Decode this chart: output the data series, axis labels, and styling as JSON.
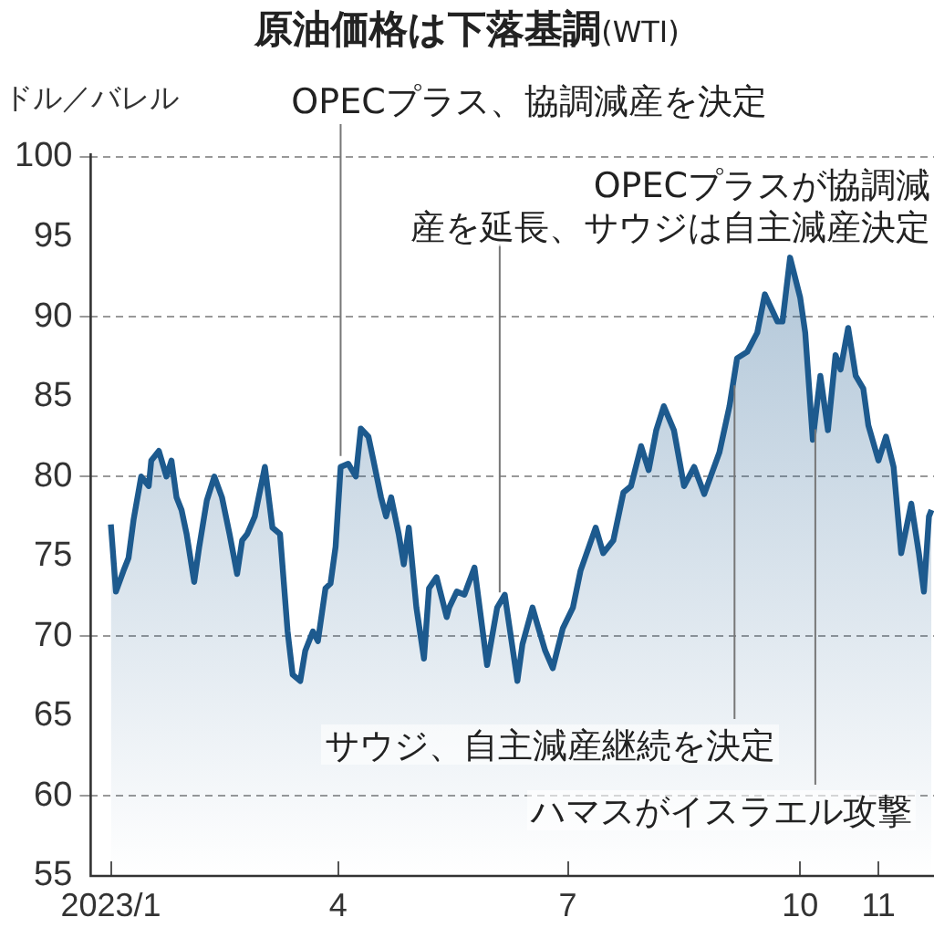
{
  "chart_data": {
    "type": "area",
    "title": "原油価格は下落基調",
    "subtitle": "(WTI)",
    "ylabel": "ドル／バレル",
    "x": [
      "2023-01-01",
      "2023-01-03",
      "2023-01-06",
      "2023-01-08",
      "2023-01-10",
      "2023-01-13",
      "2023-01-16",
      "2023-01-17",
      "2023-01-20",
      "2023-01-23",
      "2023-01-25",
      "2023-01-27",
      "2023-01-29",
      "2023-01-31",
      "2023-02-03",
      "2023-02-05",
      "2023-02-08",
      "2023-02-11",
      "2023-02-14",
      "2023-02-17",
      "2023-02-20",
      "2023-02-22",
      "2023-02-24",
      "2023-02-27",
      "2023-03-03",
      "2023-03-06",
      "2023-03-09",
      "2023-03-12",
      "2023-03-14",
      "2023-03-17",
      "2023-03-19",
      "2023-03-22",
      "2023-03-24",
      "2023-03-27",
      "2023-03-29",
      "2023-03-31",
      "2023-04-02",
      "2023-04-05",
      "2023-04-08",
      "2023-04-10",
      "2023-04-13",
      "2023-04-15",
      "2023-04-18",
      "2023-04-20",
      "2023-04-22",
      "2023-04-25",
      "2023-04-27",
      "2023-04-29",
      "2023-05-02",
      "2023-05-05",
      "2023-05-07",
      "2023-05-10",
      "2023-05-14",
      "2023-05-15",
      "2023-05-18",
      "2023-05-21",
      "2023-05-25",
      "2023-05-30",
      "2023-06-03",
      "2023-06-06",
      "2023-06-11",
      "2023-06-13",
      "2023-06-17",
      "2023-06-19",
      "2023-06-22",
      "2023-06-25",
      "2023-06-29",
      "2023-07-03",
      "2023-07-06",
      "2023-07-12",
      "2023-07-15",
      "2023-07-19",
      "2023-07-23",
      "2023-07-26",
      "2023-07-30",
      "2023-08-02",
      "2023-08-05",
      "2023-08-08",
      "2023-08-12",
      "2023-08-16",
      "2023-08-20",
      "2023-08-24",
      "2023-08-30",
      "2023-09-03",
      "2023-09-06",
      "2023-09-10",
      "2023-09-14",
      "2023-09-17",
      "2023-09-22",
      "2023-09-24",
      "2023-09-27",
      "2023-10-01",
      "2023-10-03",
      "2023-10-06",
      "2023-10-09",
      "2023-10-12",
      "2023-10-15",
      "2023-10-17",
      "2023-10-20",
      "2023-10-23",
      "2023-10-26",
      "2023-10-28",
      "2023-11-01",
      "2023-11-04",
      "2023-11-07",
      "2023-11-10",
      "2023-11-14",
      "2023-11-17",
      "2023-11-19",
      "2023-11-21",
      "2023-11-22"
    ],
    "series": [
      {
        "color": "#1d5a8e",
        "values": [
          77.0,
          72.8,
          74.1,
          74.9,
          77.3,
          80.0,
          79.4,
          81.0,
          81.6,
          80.0,
          81.0,
          78.7,
          77.9,
          76.4,
          73.4,
          75.6,
          78.5,
          80.0,
          78.7,
          76.4,
          73.9,
          76.0,
          76.4,
          77.5,
          80.6,
          76.8,
          76.4,
          70.3,
          67.6,
          67.2,
          69.1,
          70.3,
          69.7,
          73.0,
          73.3,
          75.6,
          80.6,
          80.8,
          80.0,
          83.0,
          82.5,
          81.0,
          78.7,
          77.5,
          78.7,
          76.4,
          74.5,
          76.8,
          71.8,
          68.6,
          73.0,
          73.7,
          71.2,
          71.8,
          72.8,
          72.6,
          74.3,
          68.2,
          71.8,
          72.6,
          67.2,
          69.5,
          71.8,
          70.7,
          69.1,
          68.0,
          70.5,
          71.8,
          74.1,
          76.8,
          75.2,
          76.0,
          79.0,
          79.4,
          81.9,
          80.4,
          82.9,
          84.4,
          82.9,
          79.4,
          80.6,
          78.9,
          81.5,
          84.4,
          87.4,
          87.8,
          89.0,
          91.4,
          89.7,
          89.7,
          93.7,
          91.2,
          89.0,
          82.3,
          86.3,
          82.9,
          87.6,
          86.7,
          89.3,
          86.3,
          85.5,
          83.2,
          81.0,
          82.5,
          80.6,
          75.2,
          78.3,
          75.2,
          72.8,
          77.5,
          77.9
        ]
      }
    ],
    "xlim": [
      "2022-12-24",
      "2023-11-23"
    ],
    "xticks": [
      {
        "value": "2023-01-01",
        "label": "2023/1"
      },
      {
        "value": "2023-04-01",
        "label": "4"
      },
      {
        "value": "2023-07-01",
        "label": "7"
      },
      {
        "value": "2023-10-01",
        "label": "10"
      },
      {
        "value": "2023-11-01",
        "label": "11"
      }
    ],
    "ylim": [
      55,
      100
    ],
    "yticks": [
      55,
      60,
      65,
      70,
      75,
      80,
      85,
      90,
      95,
      100
    ],
    "grid": "y",
    "ref_lines": [
      {
        "axis": "x",
        "value": "2023-04-02",
        "label": "OPECプラス、協調減産を決定",
        "color": "#777777"
      },
      {
        "axis": "x",
        "value": "2023-06-04",
        "label": "OPECプラスが協調減産を延長、サウジは自主減産決定",
        "color": "#777777"
      },
      {
        "axis": "x",
        "value": "2023-09-05",
        "label": "サウジ、自主減産継続を決定",
        "color": "#777777"
      },
      {
        "axis": "x",
        "value": "2023-10-07",
        "label": "ハマスがイスラエル攻撃",
        "color": "#777777"
      }
    ]
  }
}
